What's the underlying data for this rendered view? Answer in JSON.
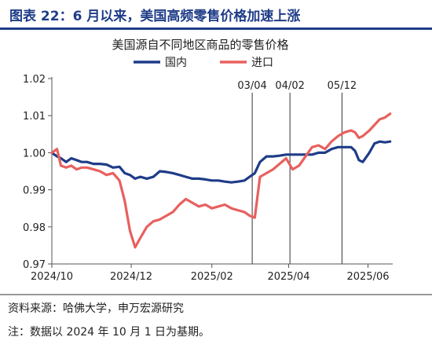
{
  "header": {
    "title": "图表 22：6 月以来，美国高频零售价格加速上涨",
    "accent_color": "#1f3c88"
  },
  "footer": {
    "source": "资料来源：哈佛大学，申万宏源研究",
    "note": "注：数据以 2024 年 10 月 1 日为基期。"
  },
  "chart_data": {
    "type": "line",
    "title": "美国源自不同地区商品的零售价格",
    "xlabel": "",
    "ylabel": "",
    "x_range": [
      "2024-10-01",
      "2025-06-20"
    ],
    "ylim": [
      0.97,
      1.02
    ],
    "y_ticks": [
      "1.02",
      "1.01",
      "1.00",
      "0.99",
      "0.98",
      "0.97"
    ],
    "x_ticks": [
      {
        "label": "2024/10",
        "date": "2024-10-01"
      },
      {
        "label": "2024/12",
        "date": "2024-12-01"
      },
      {
        "label": "2025/02",
        "date": "2025-02-01"
      },
      {
        "label": "2025/04",
        "date": "2025-04-01"
      },
      {
        "label": "2025/06",
        "date": "2025-06-01"
      }
    ],
    "grid": false,
    "legend_position": "top",
    "vlines": [
      {
        "label": "03/04",
        "date": "2025-03-04"
      },
      {
        "label": "04/02",
        "date": "2025-04-02"
      },
      {
        "label": "05/12",
        "date": "2025-05-12"
      }
    ],
    "series": [
      {
        "name": "国内",
        "color": "#1f3c88",
        "x": [
          "2024-10-01",
          "2024-10-05",
          "2024-10-08",
          "2024-10-12",
          "2024-10-16",
          "2024-10-20",
          "2024-10-24",
          "2024-10-28",
          "2024-11-02",
          "2024-11-07",
          "2024-11-12",
          "2024-11-17",
          "2024-11-22",
          "2024-11-26",
          "2024-11-30",
          "2024-12-04",
          "2024-12-08",
          "2024-12-13",
          "2024-12-18",
          "2024-12-23",
          "2024-12-28",
          "2025-01-02",
          "2025-01-07",
          "2025-01-12",
          "2025-01-17",
          "2025-01-22",
          "2025-01-27",
          "2025-02-01",
          "2025-02-06",
          "2025-02-11",
          "2025-02-16",
          "2025-02-21",
          "2025-02-26",
          "2025-03-02",
          "2025-03-06",
          "2025-03-10",
          "2025-03-15",
          "2025-03-20",
          "2025-03-25",
          "2025-03-30",
          "2025-04-04",
          "2025-04-09",
          "2025-04-14",
          "2025-04-19",
          "2025-04-24",
          "2025-04-29",
          "2025-05-04",
          "2025-05-09",
          "2025-05-14",
          "2025-05-19",
          "2025-05-22",
          "2025-05-25",
          "2025-05-28",
          "2025-06-02",
          "2025-06-06",
          "2025-06-10",
          "2025-06-14",
          "2025-06-18"
        ],
        "y": [
          1.0,
          0.999,
          0.9985,
          0.9975,
          0.9985,
          0.998,
          0.9975,
          0.9975,
          0.997,
          0.997,
          0.9968,
          0.996,
          0.9962,
          0.9945,
          0.994,
          0.993,
          0.9935,
          0.993,
          0.9935,
          0.995,
          0.9948,
          0.9945,
          0.994,
          0.9935,
          0.993,
          0.993,
          0.9928,
          0.9925,
          0.9925,
          0.9922,
          0.992,
          0.9922,
          0.9925,
          0.9935,
          0.9945,
          0.9975,
          0.999,
          0.999,
          0.9992,
          0.9995,
          0.9995,
          0.9995,
          0.9995,
          0.9995,
          1.0,
          1.0,
          1.001,
          1.0015,
          1.0015,
          1.0015,
          1.0005,
          0.998,
          0.9975,
          1.0,
          1.0025,
          1.003,
          1.0028,
          1.003
        ]
      },
      {
        "name": "进口",
        "color": "#e8605f",
        "x": [
          "2024-10-01",
          "2024-10-05",
          "2024-10-08",
          "2024-10-12",
          "2024-10-16",
          "2024-10-20",
          "2024-10-24",
          "2024-10-28",
          "2024-11-02",
          "2024-11-07",
          "2024-11-12",
          "2024-11-17",
          "2024-11-22",
          "2024-11-26",
          "2024-11-30",
          "2024-12-04",
          "2024-12-08",
          "2024-12-13",
          "2024-12-18",
          "2024-12-23",
          "2024-12-28",
          "2025-01-02",
          "2025-01-07",
          "2025-01-12",
          "2025-01-17",
          "2025-01-22",
          "2025-01-27",
          "2025-02-01",
          "2025-02-06",
          "2025-02-11",
          "2025-02-16",
          "2025-02-21",
          "2025-02-26",
          "2025-03-02",
          "2025-03-06",
          "2025-03-10",
          "2025-03-15",
          "2025-03-20",
          "2025-03-25",
          "2025-03-30",
          "2025-04-04",
          "2025-04-09",
          "2025-04-14",
          "2025-04-19",
          "2025-04-24",
          "2025-04-29",
          "2025-05-04",
          "2025-05-09",
          "2025-05-14",
          "2025-05-19",
          "2025-05-22",
          "2025-05-25",
          "2025-05-28",
          "2025-06-02",
          "2025-06-06",
          "2025-06-10",
          "2025-06-14",
          "2025-06-18"
        ],
        "y": [
          1.0,
          1.001,
          0.9965,
          0.996,
          0.9965,
          0.9955,
          0.996,
          0.996,
          0.9955,
          0.995,
          0.994,
          0.9945,
          0.9925,
          0.987,
          0.979,
          0.9745,
          0.977,
          0.98,
          0.9815,
          0.982,
          0.983,
          0.984,
          0.986,
          0.9875,
          0.9865,
          0.9855,
          0.986,
          0.985,
          0.9855,
          0.986,
          0.985,
          0.9845,
          0.984,
          0.983,
          0.9825,
          0.9935,
          0.9945,
          0.9955,
          0.997,
          0.9985,
          0.9955,
          0.9965,
          0.999,
          1.0015,
          1.002,
          1.001,
          1.003,
          1.0045,
          1.0055,
          1.006,
          1.0055,
          1.004,
          1.0045,
          1.006,
          1.0075,
          1.009,
          1.0095,
          1.0105
        ]
      }
    ]
  }
}
